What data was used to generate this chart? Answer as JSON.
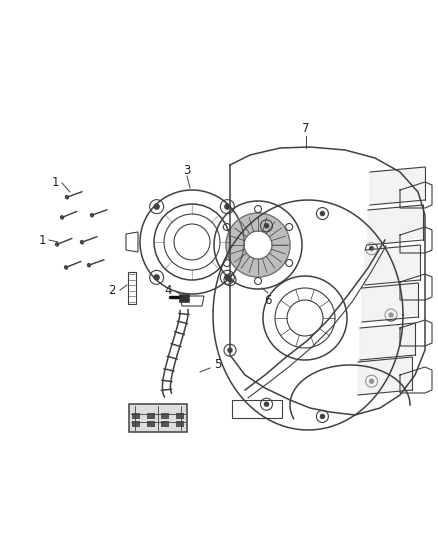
{
  "bg_color": "#ffffff",
  "line_color": "#404040",
  "line_width": 0.8,
  "font_size": 8.5,
  "fig_w": 4.38,
  "fig_h": 5.33,
  "dpi": 100
}
